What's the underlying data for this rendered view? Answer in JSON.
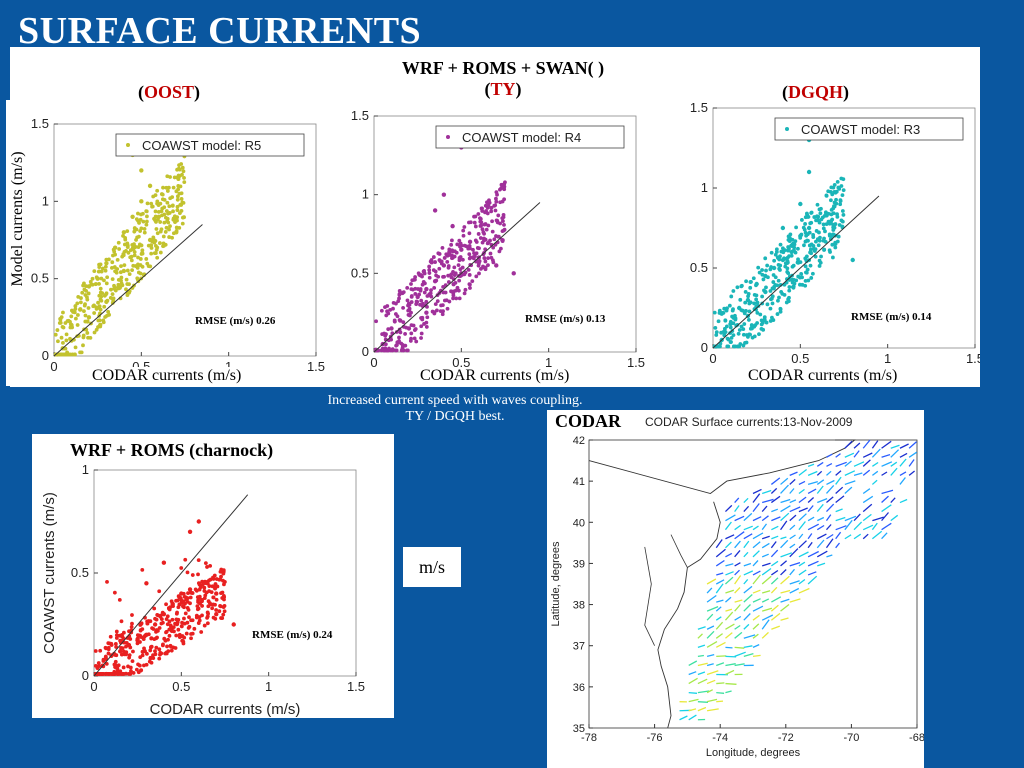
{
  "slide": {
    "title": "SURFACE CURRENTS",
    "colors": {
      "background": "#0a57a0",
      "title": "#ffffff",
      "highlight": "#c00000"
    }
  },
  "top_panel": {
    "header_line1": "WRF + ROMS + SWAN( )",
    "header_ty_open": "(",
    "header_ty": "TY",
    "header_ty_close": ")",
    "left_open": "(",
    "left_tag": "OOST",
    "left_close": ")",
    "right_open": "(",
    "right_tag": "DGQH",
    "right_close": ")",
    "y_label": "Model currents (m/s)",
    "x_label": "CODAR currents (m/s)"
  },
  "caption": {
    "line1": "Increased current speed with waves coupling.",
    "line2": "TY / DGQH best."
  },
  "bottom_left": {
    "header": "WRF + ROMS (charnock)",
    "y_label": "COAWST currents (m/s)",
    "x_label": "CODAR currents (m/s)",
    "rmse": "RMSE (m/s) 0.24"
  },
  "ms_box": "m/s",
  "codar_map": {
    "label": "CODAR",
    "title": "CODAR Surface currents:13-Nov-2009",
    "x_label": "Longitude, degrees",
    "y_label": "Latitude, degrees",
    "x_ticks": [
      "-78",
      "-76",
      "-74",
      "-72",
      "-70",
      "-68"
    ],
    "y_ticks": [
      "35",
      "36",
      "37",
      "38",
      "39",
      "40",
      "41",
      "42"
    ]
  },
  "chart_data": [
    {
      "type": "scatter",
      "legend": "COAWST model: R5",
      "rmse": "RMSE (m/s) 0.26",
      "color": "#c2c22e",
      "xlim": [
        0,
        1.5
      ],
      "ylim": [
        0,
        1.5
      ],
      "x_ticks": [
        "0",
        "0.5",
        "1",
        "1.5"
      ],
      "y_ticks": [
        "0",
        "0.5",
        "1",
        "1.5"
      ],
      "points": [
        [
          0.05,
          0.05
        ],
        [
          0.1,
          0.2
        ],
        [
          0.15,
          0.3
        ],
        [
          0.2,
          0.45
        ],
        [
          0.25,
          0.5
        ],
        [
          0.3,
          0.6
        ],
        [
          0.35,
          0.7
        ],
        [
          0.4,
          0.8
        ],
        [
          0.45,
          0.9
        ],
        [
          0.5,
          1.0
        ],
        [
          0.55,
          1.1
        ],
        [
          0.5,
          1.2
        ],
        [
          0.45,
          1.3
        ],
        [
          0.6,
          0.9
        ],
        [
          0.7,
          0.8
        ],
        [
          0.3,
          0.35
        ],
        [
          0.2,
          0.25
        ],
        [
          0.1,
          0.1
        ],
        [
          0.4,
          0.55
        ],
        [
          0.55,
          0.75
        ]
      ]
    },
    {
      "type": "scatter",
      "legend": "COAWST model: R4",
      "rmse": "RMSE (m/s) 0.13",
      "color": "#a0309a",
      "xlim": [
        0,
        1.5
      ],
      "ylim": [
        0,
        1.5
      ],
      "x_ticks": [
        "0",
        "0.5",
        "1",
        "1.5"
      ],
      "y_ticks": [
        "0",
        "0.5",
        "1",
        "1.5"
      ],
      "points": [
        [
          0.05,
          0.05
        ],
        [
          0.1,
          0.15
        ],
        [
          0.15,
          0.2
        ],
        [
          0.2,
          0.3
        ],
        [
          0.25,
          0.35
        ],
        [
          0.3,
          0.4
        ],
        [
          0.35,
          0.45
        ],
        [
          0.4,
          0.55
        ],
        [
          0.45,
          0.6
        ],
        [
          0.5,
          0.65
        ],
        [
          0.55,
          0.7
        ],
        [
          0.6,
          0.6
        ],
        [
          0.7,
          0.55
        ],
        [
          0.8,
          0.5
        ],
        [
          0.4,
          1.0
        ],
        [
          0.5,
          1.3
        ],
        [
          0.3,
          0.25
        ],
        [
          0.45,
          0.8
        ],
        [
          0.35,
          0.9
        ],
        [
          0.2,
          0.15
        ]
      ]
    },
    {
      "type": "scatter",
      "legend": "COAWST model: R3",
      "rmse": "RMSE (m/s) 0.14",
      "color": "#1ab5b8",
      "xlim": [
        0,
        1.5
      ],
      "ylim": [
        0,
        1.5
      ],
      "x_ticks": [
        "0",
        "0.5",
        "1",
        "1.5"
      ],
      "y_ticks": [
        "0",
        "0.5",
        "1",
        "1.5"
      ],
      "points": [
        [
          0.05,
          0.05
        ],
        [
          0.1,
          0.15
        ],
        [
          0.15,
          0.25
        ],
        [
          0.2,
          0.3
        ],
        [
          0.25,
          0.4
        ],
        [
          0.3,
          0.45
        ],
        [
          0.35,
          0.5
        ],
        [
          0.4,
          0.55
        ],
        [
          0.45,
          0.6
        ],
        [
          0.5,
          0.7
        ],
        [
          0.55,
          0.75
        ],
        [
          0.6,
          0.8
        ],
        [
          0.5,
          0.9
        ],
        [
          0.55,
          1.1
        ],
        [
          0.55,
          1.3
        ],
        [
          0.7,
          0.65
        ],
        [
          0.8,
          0.55
        ],
        [
          0.3,
          0.35
        ],
        [
          0.4,
          0.75
        ],
        [
          0.2,
          0.2
        ]
      ]
    },
    {
      "type": "scatter",
      "color": "#e82020",
      "xlim": [
        0,
        1.5
      ],
      "ylim": [
        0,
        1
      ],
      "x_ticks": [
        "0",
        "0.5",
        "1",
        "1.5"
      ],
      "y_ticks": [
        "0",
        "0.5",
        "1"
      ],
      "points": [
        [
          0.05,
          0.05
        ],
        [
          0.1,
          0.1
        ],
        [
          0.15,
          0.12
        ],
        [
          0.2,
          0.15
        ],
        [
          0.25,
          0.18
        ],
        [
          0.3,
          0.2
        ],
        [
          0.35,
          0.25
        ],
        [
          0.4,
          0.3
        ],
        [
          0.45,
          0.35
        ],
        [
          0.5,
          0.4
        ],
        [
          0.55,
          0.42
        ],
        [
          0.6,
          0.38
        ],
        [
          0.7,
          0.3
        ],
        [
          0.8,
          0.25
        ],
        [
          0.6,
          0.75
        ],
        [
          0.55,
          0.7
        ],
        [
          0.4,
          0.55
        ],
        [
          0.3,
          0.45
        ],
        [
          0.65,
          0.45
        ],
        [
          0.7,
          0.4
        ]
      ]
    }
  ]
}
